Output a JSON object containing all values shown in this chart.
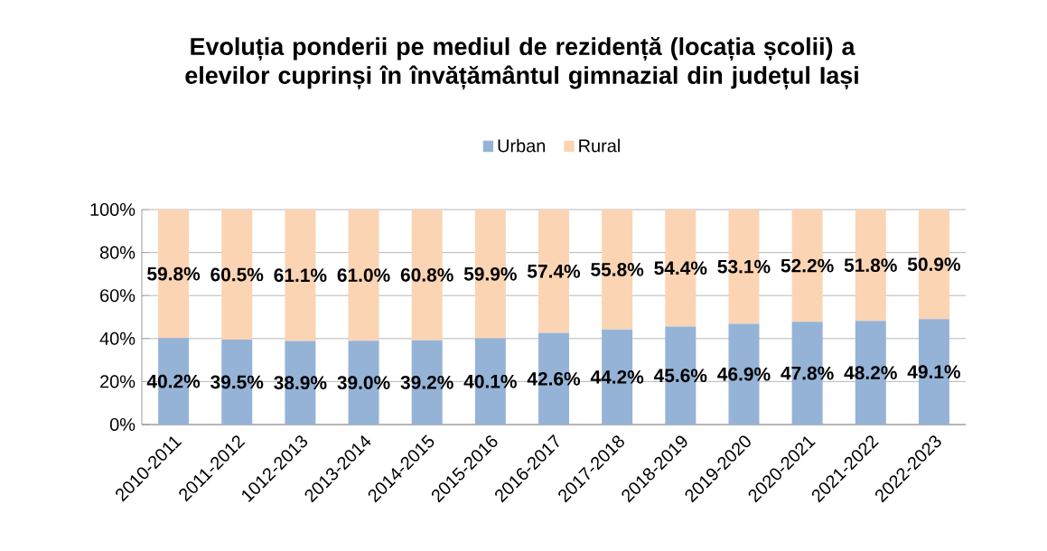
{
  "chart_data": {
    "type": "bar",
    "stacked": true,
    "title": "Evoluția ponderii pe mediul de rezidență (locația școlii) a elevilor cuprinși în  învățământul gimnazial din județul Iași",
    "categories": [
      "2010-2011",
      "2011-2012",
      "1012-2013",
      "2013-2014",
      "2014-2015",
      "2015-2016",
      "2016-2017",
      "2017-2018",
      "2018-2019",
      "2019-2020",
      "2020-2021",
      "2021-2022",
      "2022-2023"
    ],
    "series": [
      {
        "name": "Urban",
        "color": "#95b3d7",
        "values": [
          40.2,
          39.5,
          38.9,
          39.0,
          39.2,
          40.1,
          42.6,
          44.2,
          45.6,
          46.9,
          47.8,
          48.2,
          49.1
        ],
        "value_labels": [
          "40.2%",
          "39.5%",
          "38.9%",
          "39.0%",
          "39.2%",
          "40.1%",
          "42.6%",
          "44.2%",
          "45.6%",
          "46.9%",
          "47.8%",
          "48.2%",
          "49.1%"
        ]
      },
      {
        "name": "Rural",
        "color": "#fbd4b4",
        "values": [
          59.8,
          60.5,
          61.1,
          61.0,
          60.8,
          59.9,
          57.4,
          55.8,
          54.4,
          53.1,
          52.2,
          51.8,
          50.9
        ],
        "value_labels": [
          "59.8%",
          "60.5%",
          "61.1%",
          "61.0%",
          "60.8%",
          "59.9%",
          "57.4%",
          "55.8%",
          "54.4%",
          "53.1%",
          "52.2%",
          "51.8%",
          "50.9%"
        ]
      }
    ],
    "ylim": [
      0,
      100
    ],
    "yticks": [
      {
        "value": 0,
        "label": "0%"
      },
      {
        "value": 20,
        "label": "20%"
      },
      {
        "value": 40,
        "label": "40%"
      },
      {
        "value": 60,
        "label": "60%"
      },
      {
        "value": 80,
        "label": "80%"
      },
      {
        "value": 100,
        "label": "100%"
      }
    ],
    "grid": "y",
    "legend": "top"
  }
}
